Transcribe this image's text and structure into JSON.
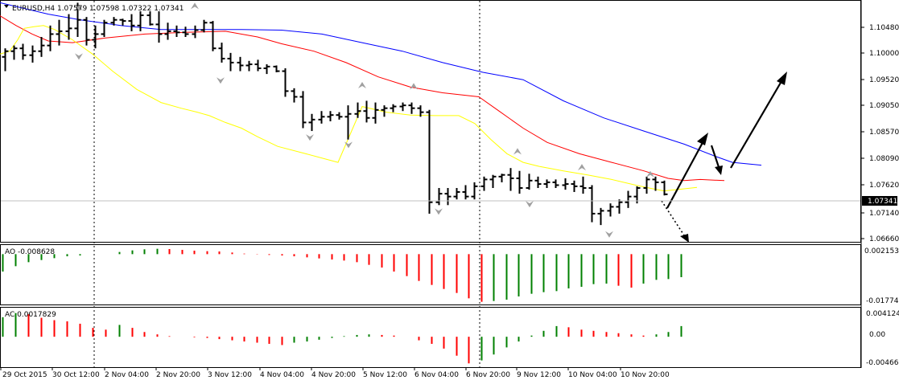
{
  "window": {
    "header": "EURUSD,H4  1.07579 1.07598 1.07322 1.07341"
  },
  "colors": {
    "background": "#ffffff",
    "bar": "#000000",
    "ma_fast": "#ffff00",
    "ma_mid": "#ff0000",
    "ma_slow": "#0000ff",
    "osc_up": "#008000",
    "osc_down": "#ff0000",
    "fractal": "#a0a0a0",
    "price_tag_bg": "#000000",
    "price_tag_text": "#ffffff"
  },
  "chart_data": [
    {
      "type": "ohlc",
      "symbol": "EURUSD",
      "timeframe": "H4",
      "last_price": "1.07341",
      "ylim": [
        1.0652,
        1.1072
      ],
      "y_ticks": [
        "1.10480",
        "1.10000",
        "1.09520",
        "1.09050",
        "1.08570",
        "1.08090",
        "1.07620",
        "1.07140",
        "1.06660"
      ],
      "x_ticks": [
        "29 Oct 2015",
        "30 Oct 12:00",
        "2 Nov 04:00",
        "2 Nov 20:00",
        "3 Nov 12:00",
        "4 Nov 04:00",
        "4 Nov 20:00",
        "5 Nov 12:00",
        "6 Nov 04:00",
        "6 Nov 20:00",
        "9 Nov 12:00",
        "10 Nov 04:00",
        "10 Nov 20:00"
      ],
      "bars": [
        [
          1.0975,
          1.099,
          1.095,
          1.0985
        ],
        [
          1.0985,
          1.0995,
          1.097,
          1.099
        ],
        [
          1.099,
          1.0998,
          1.097,
          1.0978
        ],
        [
          1.0978,
          1.0995,
          1.0965,
          1.0985
        ],
        [
          1.0985,
          1.101,
          1.0975,
          1.0995
        ],
        [
          1.0995,
          1.103,
          1.0985,
          1.1015
        ],
        [
          1.1015,
          1.104,
          1.0995,
          1.102
        ],
        [
          1.102,
          1.105,
          1.1005,
          1.1025
        ],
        [
          1.1025,
          1.107,
          1.101,
          1.104
        ],
        [
          1.104,
          1.1045,
          1.0995,
          1.1005
        ],
        [
          1.1005,
          1.103,
          1.099,
          1.1015
        ],
        [
          1.1015,
          1.104,
          1.101,
          1.1035
        ],
        [
          1.1035,
          1.1045,
          1.103,
          1.104
        ],
        [
          1.104,
          1.1042,
          1.103,
          1.1038
        ],
        [
          1.1038,
          1.105,
          1.102,
          1.103
        ],
        [
          1.103,
          1.1055,
          1.102,
          1.1048
        ],
        [
          1.1048,
          1.1055,
          1.103,
          1.1032
        ],
        [
          1.1032,
          1.1055,
          1.1,
          1.1015
        ],
        [
          1.1015,
          1.1035,
          1.1005,
          1.102
        ],
        [
          1.102,
          1.103,
          1.101,
          1.1018
        ],
        [
          1.1018,
          1.1028,
          1.101,
          1.1015
        ],
        [
          1.1015,
          1.103,
          1.1008,
          1.1022
        ],
        [
          1.1022,
          1.104,
          1.1018,
          1.1035
        ],
        [
          1.1035,
          1.1038,
          1.0985,
          1.099
        ],
        [
          1.099,
          1.1,
          1.0965,
          1.0972
        ],
        [
          1.0972,
          1.0982,
          1.095,
          1.0965
        ],
        [
          1.0965,
          1.0975,
          1.095,
          1.096
        ],
        [
          1.096,
          1.0968,
          1.095,
          1.0962
        ],
        [
          1.0962,
          1.097,
          1.095,
          1.0955
        ],
        [
          1.0955,
          1.0962,
          1.0945,
          1.0958
        ],
        [
          1.0958,
          1.096,
          1.0948,
          1.095
        ],
        [
          1.095,
          1.0955,
          1.0905,
          1.0915
        ],
        [
          1.0915,
          1.092,
          1.0895,
          1.0905
        ],
        [
          1.0905,
          1.0915,
          1.085,
          1.086
        ],
        [
          1.086,
          1.0875,
          1.0845,
          1.0865
        ],
        [
          1.0865,
          1.088,
          1.0858,
          1.087
        ],
        [
          1.087,
          1.088,
          1.0862,
          1.0873
        ],
        [
          1.0873,
          1.0878,
          1.0865,
          1.087
        ],
        [
          1.087,
          1.089,
          1.083,
          1.0875
        ],
        [
          1.0875,
          1.0895,
          1.0868,
          1.088
        ],
        [
          1.088,
          1.0898,
          1.086,
          1.0868
        ],
        [
          1.0868,
          1.0895,
          1.0858,
          1.0882
        ],
        [
          1.0882,
          1.089,
          1.087,
          1.0885
        ],
        [
          1.0885,
          1.0892,
          1.0878,
          1.0888
        ],
        [
          1.0888,
          1.0895,
          1.088,
          1.089
        ],
        [
          1.089,
          1.0895,
          1.0875,
          1.0885
        ],
        [
          1.0885,
          1.089,
          1.087,
          1.0878
        ],
        [
          1.0878,
          1.0882,
          1.07,
          1.072
        ],
        [
          1.072,
          1.0745,
          1.0715,
          1.0735
        ],
        [
          1.0735,
          1.0745,
          1.0715,
          1.073
        ],
        [
          1.073,
          1.0745,
          1.0725,
          1.0738
        ],
        [
          1.0738,
          1.075,
          1.0725,
          1.073
        ],
        [
          1.073,
          1.0755,
          1.0725,
          1.0748
        ],
        [
          1.0748,
          1.0765,
          1.074,
          1.076
        ],
        [
          1.076,
          1.0768,
          1.0745,
          1.0765
        ],
        [
          1.0765,
          1.077,
          1.0755,
          1.0768
        ],
        [
          1.0768,
          1.078,
          1.074,
          1.0762
        ],
        [
          1.0762,
          1.0775,
          1.0735,
          1.0745
        ],
        [
          1.0745,
          1.077,
          1.0742,
          1.0758
        ],
        [
          1.0758,
          1.0765,
          1.0745,
          1.0752
        ],
        [
          1.0752,
          1.076,
          1.0745,
          1.0755
        ],
        [
          1.0755,
          1.076,
          1.0745,
          1.075
        ],
        [
          1.075,
          1.0762,
          1.0742,
          1.0752
        ],
        [
          1.0752,
          1.0758,
          1.0738,
          1.0748
        ],
        [
          1.0748,
          1.0765,
          1.0735,
          1.0745
        ],
        [
          1.0745,
          1.075,
          1.0685,
          1.07
        ],
        [
          1.07,
          1.071,
          1.068,
          1.0705
        ],
        [
          1.0705,
          1.0718,
          1.0695,
          1.0712
        ],
        [
          1.0712,
          1.0725,
          1.07,
          1.072
        ],
        [
          1.072,
          1.074,
          1.071,
          1.073
        ],
        [
          1.073,
          1.0748,
          1.0718,
          1.0745
        ],
        [
          1.0745,
          1.0765,
          1.0735,
          1.076
        ],
        [
          1.076,
          1.0765,
          1.074,
          1.0755
        ],
        [
          1.0755,
          1.0758,
          1.0732,
          1.0734
        ]
      ],
      "ma_fast": [
        [
          0,
          1.098
        ],
        [
          12,
          1.0985
        ],
        [
          22,
          1.1005
        ],
        [
          30,
          1.1025
        ],
        [
          42,
          1.1028
        ],
        [
          54,
          1.103
        ],
        [
          68,
          1.1023
        ],
        [
          90,
          1.1005
        ],
        [
          115,
          1.098
        ],
        [
          140,
          1.095
        ],
        [
          170,
          1.0918
        ],
        [
          200,
          1.0895
        ],
        [
          225,
          1.0885
        ],
        [
          245,
          1.0878
        ],
        [
          260,
          1.0872
        ],
        [
          280,
          1.086
        ],
        [
          300,
          1.085
        ],
        [
          320,
          1.0835
        ],
        [
          345,
          1.0818
        ],
        [
          380,
          1.0805
        ],
        [
          420,
          1.079
        ],
        [
          450,
          1.0888
        ],
        [
          480,
          1.0878
        ],
        [
          510,
          1.0873
        ],
        [
          540,
          1.0872
        ],
        [
          570,
          1.0872
        ],
        [
          590,
          1.0858
        ],
        [
          610,
          1.083
        ],
        [
          630,
          1.0805
        ],
        [
          650,
          1.079
        ],
        [
          670,
          1.0783
        ],
        [
          700,
          1.0775
        ],
        [
          730,
          1.0768
        ],
        [
          760,
          1.076
        ],
        [
          790,
          1.075
        ],
        [
          810,
          1.0744
        ],
        [
          825,
          1.074
        ],
        [
          840,
          1.0742
        ],
        [
          866,
          1.0746
        ]
      ],
      "ma_mid": [
        [
          0,
          1.1047
        ],
        [
          20,
          1.103
        ],
        [
          40,
          1.1015
        ],
        [
          60,
          1.1003
        ],
        [
          90,
          1.1
        ],
        [
          130,
          1.1008
        ],
        [
          180,
          1.1015
        ],
        [
          230,
          1.1018
        ],
        [
          280,
          1.102
        ],
        [
          320,
          1.101
        ],
        [
          350,
          1.0998
        ],
        [
          390,
          1.0985
        ],
        [
          430,
          1.0965
        ],
        [
          470,
          1.094
        ],
        [
          510,
          1.0922
        ],
        [
          550,
          1.0912
        ],
        [
          595,
          1.0905
        ],
        [
          620,
          1.088
        ],
        [
          650,
          1.085
        ],
        [
          680,
          1.0825
        ],
        [
          720,
          1.0805
        ],
        [
          760,
          1.079
        ],
        [
          800,
          1.0775
        ],
        [
          830,
          1.0762
        ],
        [
          850,
          1.0758
        ],
        [
          870,
          1.076
        ],
        [
          900,
          1.0758
        ]
      ],
      "ma_slow": [
        [
          0,
          1.107
        ],
        [
          60,
          1.105
        ],
        [
          100,
          1.104
        ],
        [
          150,
          1.103
        ],
        [
          200,
          1.1023
        ],
        [
          250,
          1.1023
        ],
        [
          300,
          1.1023
        ],
        [
          350,
          1.1022
        ],
        [
          400,
          1.1015
        ],
        [
          450,
          1.1
        ],
        [
          500,
          1.0985
        ],
        [
          550,
          1.0965
        ],
        [
          600,
          1.0948
        ],
        [
          650,
          1.0935
        ],
        [
          700,
          1.0898
        ],
        [
          750,
          1.0868
        ],
        [
          800,
          1.0845
        ],
        [
          850,
          1.0822
        ],
        [
          890,
          1.08
        ],
        [
          910,
          1.079
        ],
        [
          946,
          1.0785
        ]
      ],
      "fractals_up": [
        [
          98,
          1.106
        ],
        [
          242,
          1.1063
        ],
        [
          450,
          1.0924
        ],
        [
          514,
          1.0922
        ],
        [
          643,
          1.0808
        ],
        [
          723,
          1.078
        ],
        [
          808,
          1.0768
        ]
      ],
      "fractals_down": [
        [
          98,
          1.0977
        ],
        [
          274,
          1.0935
        ],
        [
          385,
          1.0835
        ],
        [
          433,
          1.0822
        ],
        [
          545,
          1.0705
        ],
        [
          658,
          1.0718
        ],
        [
          757,
          1.0665
        ]
      ]
    },
    {
      "type": "bar",
      "name": "AO",
      "header": "AO -0.008628",
      "ylim": [
        -0.0185,
        0.0025
      ],
      "y_ticks": [
        "0.002153",
        "-0.017743"
      ],
      "values": [
        0.0008,
        0.0014,
        0.0018,
        0.002,
        0.0019,
        0.0016,
        0.0013,
        0.0011,
        0.001,
        0.0006,
        0.0002,
        -0.0001,
        -0.0003,
        -0.0005,
        -0.0008,
        -0.0012,
        -0.0016,
        -0.002,
        -0.0024,
        -0.003,
        -0.004,
        -0.005,
        -0.0065,
        -0.0082,
        -0.01,
        -0.0115,
        -0.013,
        -0.0145,
        -0.0165,
        -0.0178,
        -0.0175,
        -0.017,
        -0.0158,
        -0.0148,
        -0.0142,
        -0.0138,
        -0.0128,
        -0.0122,
        -0.0112,
        -0.011,
        -0.0118,
        -0.0125,
        -0.011,
        -0.0096,
        -0.0093,
        -0.0086
      ],
      "first_x": 148,
      "step": 15.5,
      "lead": [
        [
          3,
          -0.0065
        ],
        [
          19,
          -0.0045
        ],
        [
          35,
          -0.003
        ],
        [
          51,
          -0.0022
        ],
        [
          67,
          -0.0015
        ],
        [
          83,
          -0.0008
        ],
        [
          99,
          -0.0005
        ]
      ]
    },
    {
      "type": "bar",
      "name": "AC",
      "header": "AC 0.0017829",
      "ylim": [
        -0.005,
        0.0045
      ],
      "y_ticks": [
        "0.004124",
        "0.00",
        "-0.004667"
      ],
      "values": [
        0.002,
        0.0015,
        0.0008,
        0.0004,
        0.0001,
        0.0,
        -0.0001,
        -0.0002,
        -0.0004,
        -0.0006,
        -0.0008,
        -0.001,
        -0.0012,
        -0.0014,
        -0.001,
        -0.0008,
        -0.0005,
        -0.0002,
        0.0001,
        0.0003,
        0.0004,
        0.0003,
        0.0002,
        0.0,
        -0.0006,
        -0.0012,
        -0.002,
        -0.0032,
        -0.0045,
        -0.004,
        -0.003,
        -0.0018,
        -0.0008,
        0.0002,
        0.001,
        0.0018,
        0.0016,
        0.0012,
        0.001,
        0.0008,
        0.0006,
        0.0004,
        0.0002,
        0.0004,
        0.0008,
        0.0018
      ],
      "first_x": 148,
      "step": 15.5,
      "lead": [
        [
          3,
          0.0033
        ],
        [
          19,
          0.004
        ],
        [
          35,
          0.0038
        ],
        [
          51,
          0.0032
        ],
        [
          67,
          0.0028
        ],
        [
          83,
          0.0026
        ],
        [
          99,
          0.0022
        ],
        [
          115,
          0.0015
        ],
        [
          131,
          0.0012
        ]
      ]
    }
  ]
}
